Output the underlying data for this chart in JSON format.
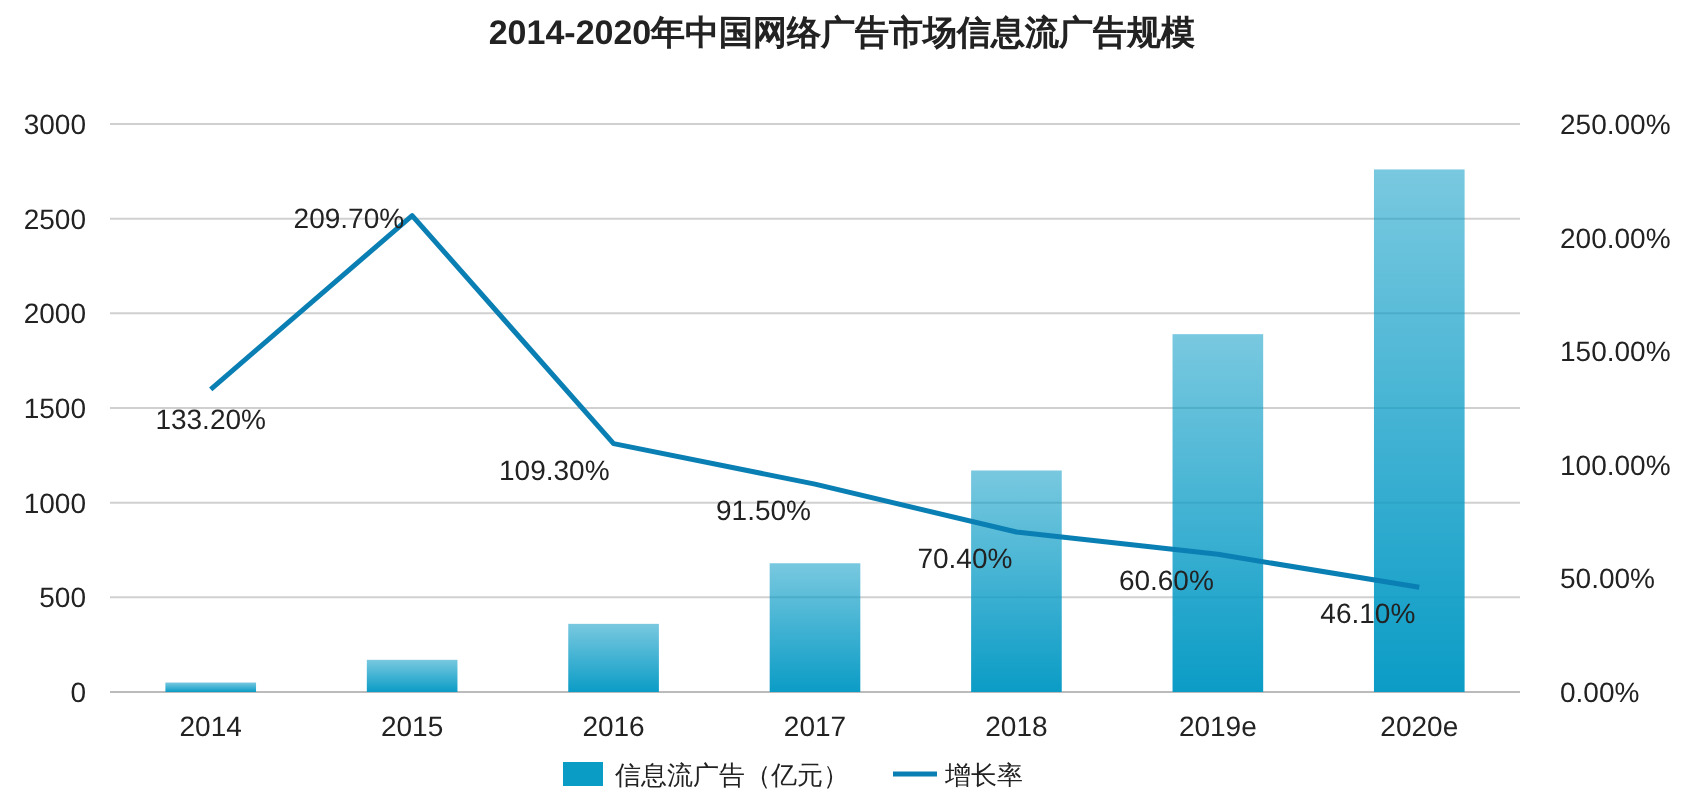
{
  "chart_data": {
    "type": "bar",
    "title": "2014-2020年中国网络广告市场信息流广告规模",
    "categories": [
      "2014",
      "2015",
      "2016",
      "2017",
      "2018",
      "2019e",
      "2020e"
    ],
    "series": [
      {
        "name": "信息流广告（亿元）",
        "color": "#0b9cc6",
        "values": [
          50,
          170,
          360,
          680,
          1170,
          1890,
          2760
        ]
      },
      {
        "name": "增长率",
        "type": "line",
        "axis": "y2",
        "color": "#0a7fb3",
        "values": [
          133.2,
          209.7,
          109.3,
          91.5,
          70.4,
          60.6,
          46.1
        ],
        "value_labels": [
          "133.20%",
          "209.70%",
          "109.30%",
          "91.50%",
          "70.40%",
          "60.60%",
          "46.10%"
        ]
      }
    ],
    "ylim": [
      0,
      3000
    ],
    "yticks": [
      0,
      500,
      1000,
      1500,
      2000,
      2500,
      3000
    ],
    "y2lim": [
      0,
      250
    ],
    "y2ticks": [
      {
        "value": 0,
        "label": "0.00%"
      },
      {
        "value": 50,
        "label": "50.00%"
      },
      {
        "value": 100,
        "label": "100.00%"
      },
      {
        "value": 150,
        "label": "150.00%"
      },
      {
        "value": 200,
        "label": "200.00%"
      },
      {
        "value": 250,
        "label": "250.00%"
      }
    ],
    "grid": "y",
    "legend": "bottom",
    "marker": "none",
    "line_style": "solid"
  }
}
